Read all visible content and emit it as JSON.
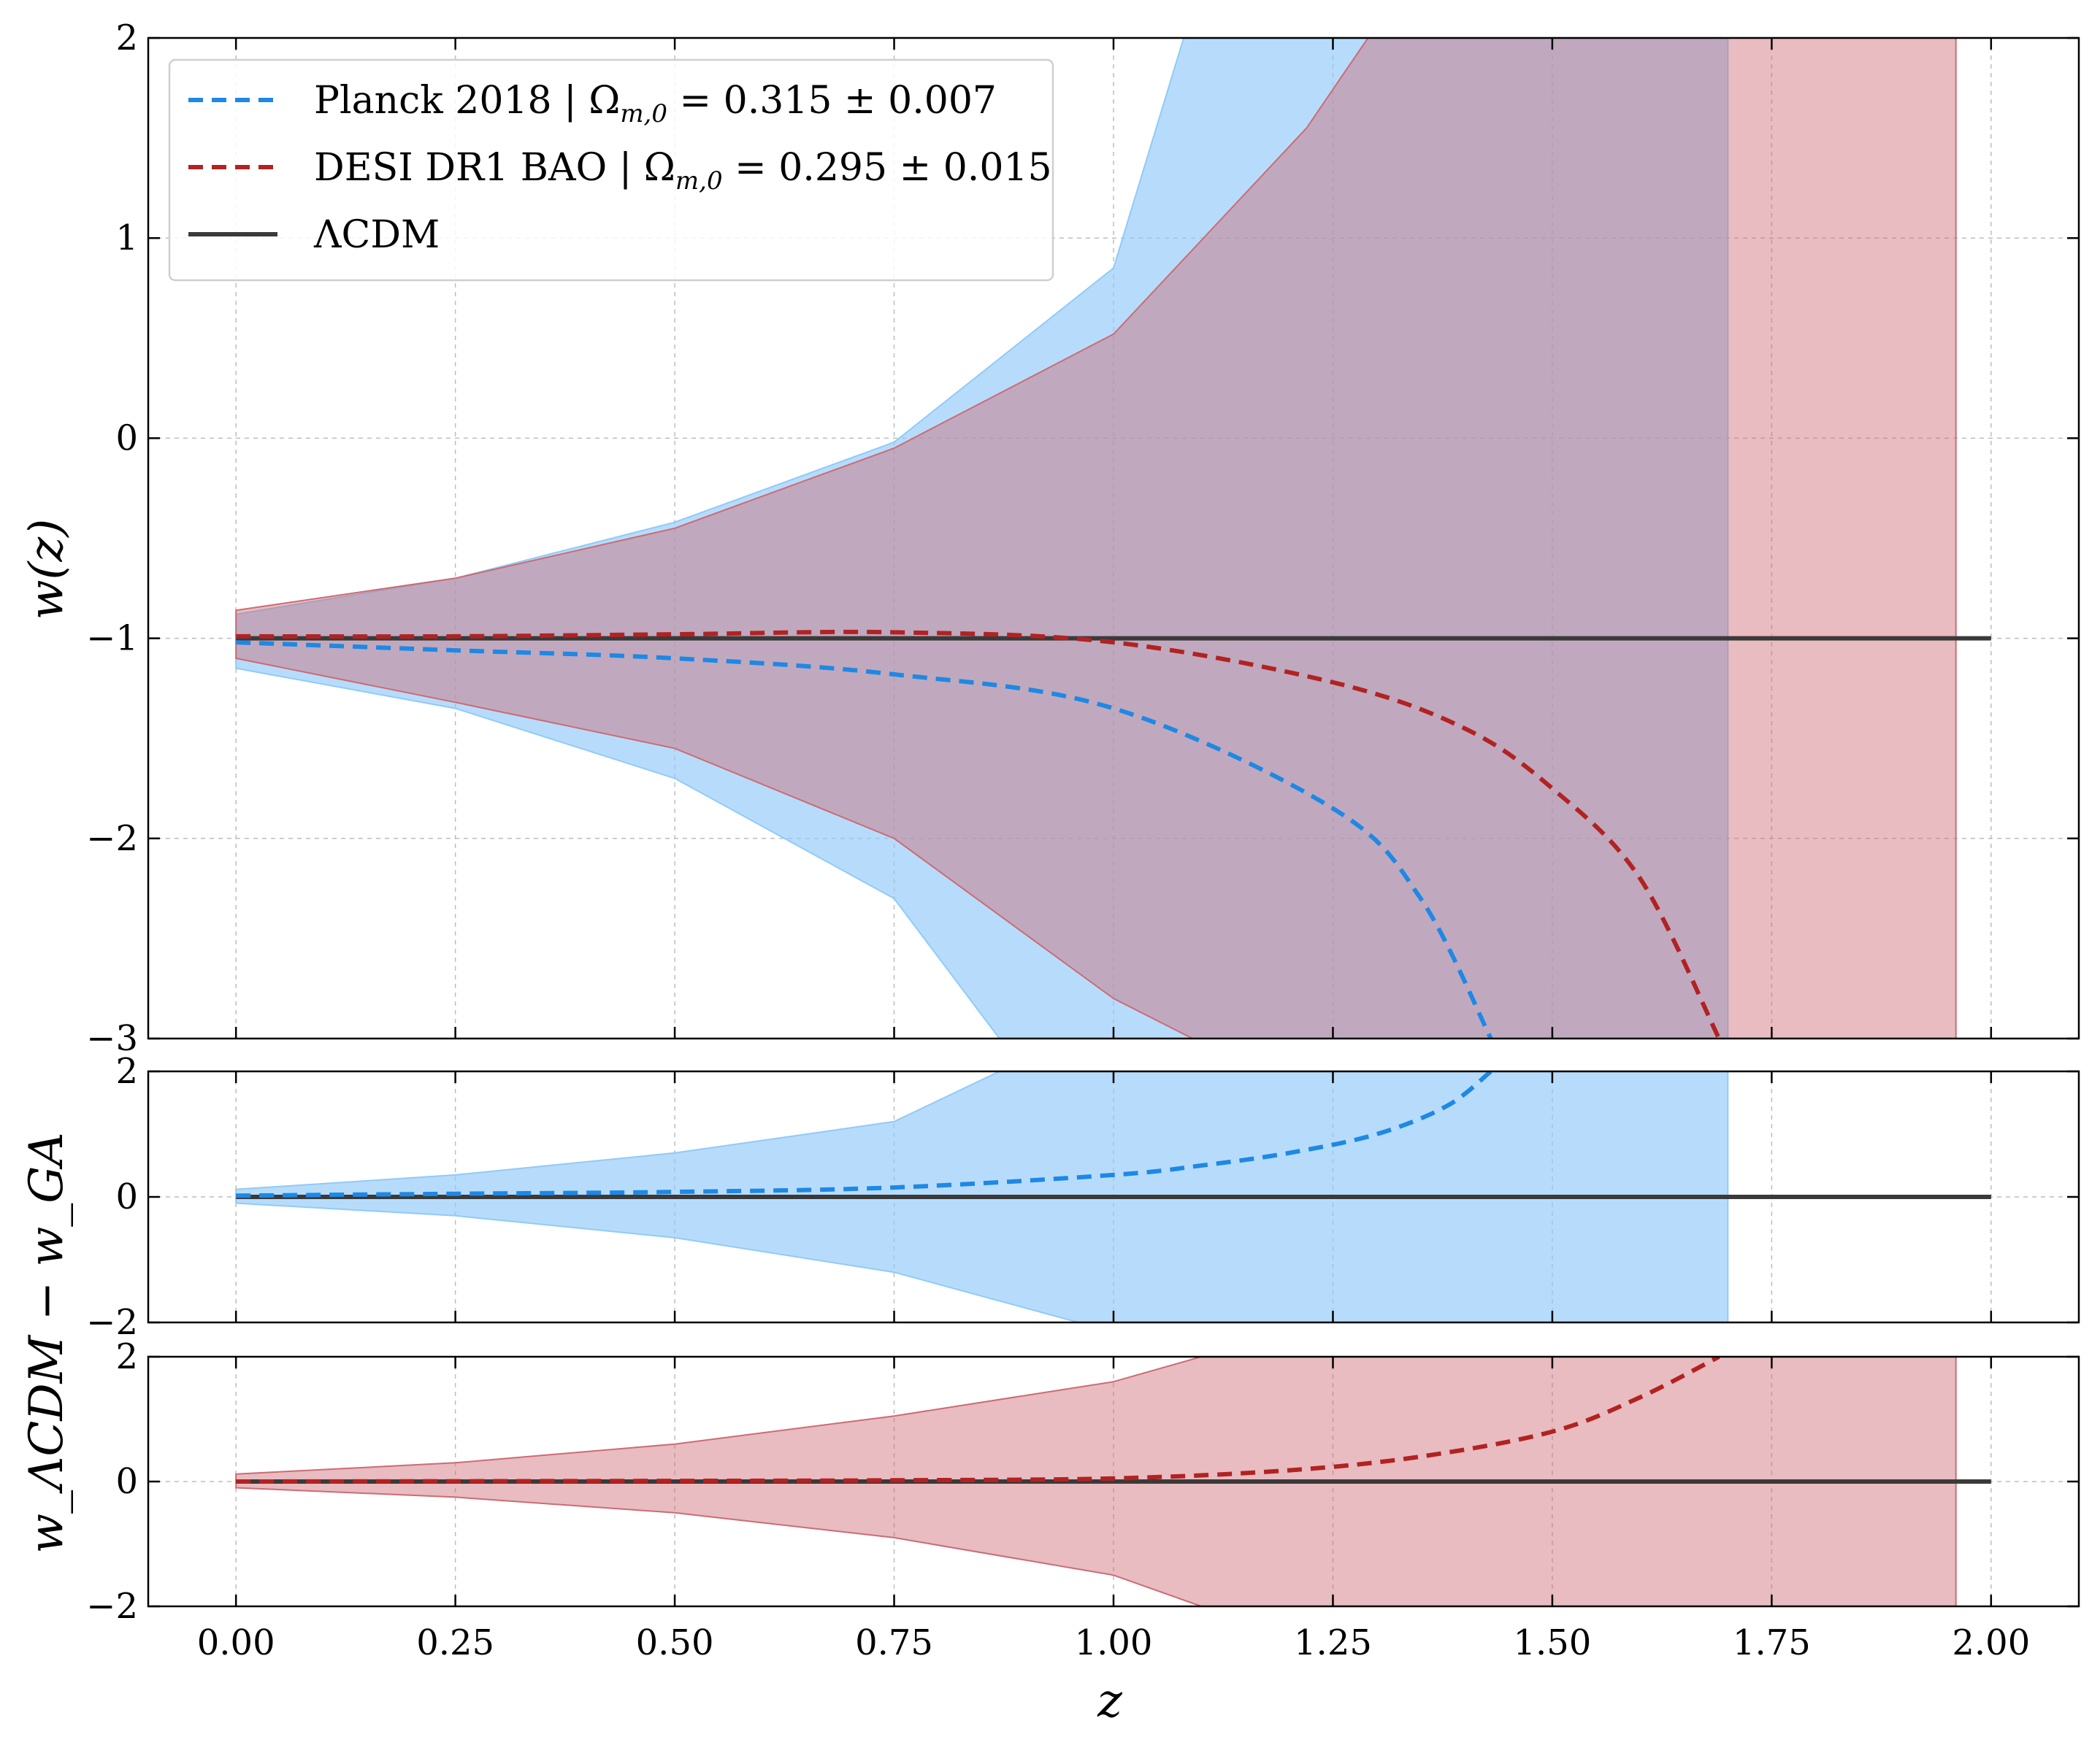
{
  "chart_data": {
    "type": "line",
    "xlabel": "z",
    "xlim": [
      -0.1,
      2.1
    ],
    "x_ticks": [
      "0.00",
      "0.25",
      "0.50",
      "0.75",
      "1.00",
      "1.25",
      "1.50",
      "1.75",
      "2.00"
    ],
    "x_tick_values": [
      0,
      0.25,
      0.5,
      0.75,
      1.0,
      1.25,
      1.5,
      1.75,
      2.0
    ],
    "grid": true,
    "legend_position": "top-left",
    "colors": {
      "planck": "#1e88e5",
      "planck_band": "#90caf9",
      "desi": "#b22222",
      "desi_band": "#cd6b73",
      "purple_overlap": "#b4a4bc",
      "lcdm": "#3a3a3a"
    },
    "panels": [
      {
        "id": "main",
        "ylabel": "w(z)",
        "ylim": [
          -3,
          2
        ],
        "y_ticks": [
          "2",
          "1",
          "0",
          "−1",
          "−2",
          "−3"
        ],
        "y_tick_values": [
          2,
          1,
          0,
          -1,
          -2,
          -3
        ],
        "series": [
          {
            "name": "Planck 2018 | Ωm,0 = 0.315 ± 0.007",
            "style": "dashed",
            "x": [
              0,
              0.25,
              0.5,
              0.75,
              1.0,
              1.25,
              1.35,
              1.43
            ],
            "y": [
              -1.02,
              -1.06,
              -1.1,
              -1.18,
              -1.35,
              -1.85,
              -2.3,
              -3.0
            ],
            "band_upper": [
              -0.88,
              -0.7,
              -0.42,
              -0.02,
              0.85,
              2.0
            ],
            "band_upper_x": [
              0,
              0.25,
              0.5,
              0.75,
              1.0,
              1.08
            ],
            "band_lower": [
              -1.15,
              -1.35,
              -1.7,
              -2.3,
              -3.0
            ],
            "band_lower_x": [
              0,
              0.25,
              0.5,
              0.75,
              0.87
            ]
          },
          {
            "name": "DESI DR1 BAO | Ωm,0 = 0.295 ± 0.015",
            "style": "dashed",
            "x": [
              0,
              0.25,
              0.5,
              0.75,
              1.0,
              1.25,
              1.4,
              1.5,
              1.6,
              1.69
            ],
            "y": [
              -0.99,
              -0.99,
              -0.98,
              -0.97,
              -1.02,
              -1.22,
              -1.45,
              -1.75,
              -2.2,
              -3.0
            ],
            "band_upper": [
              -0.86,
              -0.7,
              -0.45,
              -0.05,
              0.52,
              1.55,
              2.0
            ],
            "band_upper_x": [
              0,
              0.25,
              0.5,
              0.75,
              1.0,
              1.22,
              1.29
            ],
            "band_lower": [
              -1.1,
              -1.32,
              -1.55,
              -2.0,
              -2.8,
              -3.0
            ],
            "band_lower_x": [
              0,
              0.25,
              0.5,
              0.75,
              1.0,
              1.09
            ],
            "band_end_x": 1.96
          },
          {
            "name": "ΛCDM",
            "style": "solid",
            "x": [
              0,
              2.0
            ],
            "y": [
              -1,
              -1
            ]
          }
        ]
      },
      {
        "id": "res_planck",
        "ylim": [
          -2,
          2
        ],
        "y_ticks": [
          "2",
          "0",
          "−2"
        ],
        "y_tick_values": [
          2,
          0,
          -2
        ],
        "series": [
          {
            "name": "Planck 2018 | Ωm,0 = 0.315 ± 0.007",
            "style": "dashed",
            "x": [
              0,
              0.25,
              0.5,
              0.75,
              1.0,
              1.1,
              1.2,
              1.3,
              1.38,
              1.43
            ],
            "y": [
              0.02,
              0.05,
              0.08,
              0.15,
              0.35,
              0.5,
              0.7,
              1.0,
              1.45,
              2.0
            ]
          }
        ]
      },
      {
        "id": "res_desi",
        "ylim": [
          -2,
          2
        ],
        "y_ticks": [
          "2",
          "0",
          "−2"
        ],
        "y_tick_values": [
          2,
          0,
          -2
        ],
        "series": [
          {
            "name": "DESI DR1 BAO | Ωm,0 = 0.295 ± 0.015",
            "style": "dashed",
            "x": [
              0,
              0.5,
              0.75,
              1.0,
              1.2,
              1.35,
              1.5,
              1.6,
              1.69
            ],
            "y": [
              0.0,
              0.01,
              0.02,
              0.05,
              0.18,
              0.4,
              0.8,
              1.35,
              2.0
            ]
          }
        ]
      }
    ],
    "shared_ylabel": "w_ΛCDM − w_GA",
    "legend": [
      {
        "label_main": "Planck 2018 | Ω",
        "sub": "m,0",
        "label_tail": " = 0.315 ± 0.007",
        "style": "dashed",
        "color_key": "planck"
      },
      {
        "label_main": "DESI DR1 BAO | Ω",
        "sub": "m,0",
        "label_tail": " = 0.295 ± 0.015",
        "style": "dashed",
        "color_key": "desi"
      },
      {
        "label_main": "ΛCDM",
        "sub": "",
        "label_tail": "",
        "style": "solid",
        "color_key": "lcdm"
      }
    ]
  }
}
